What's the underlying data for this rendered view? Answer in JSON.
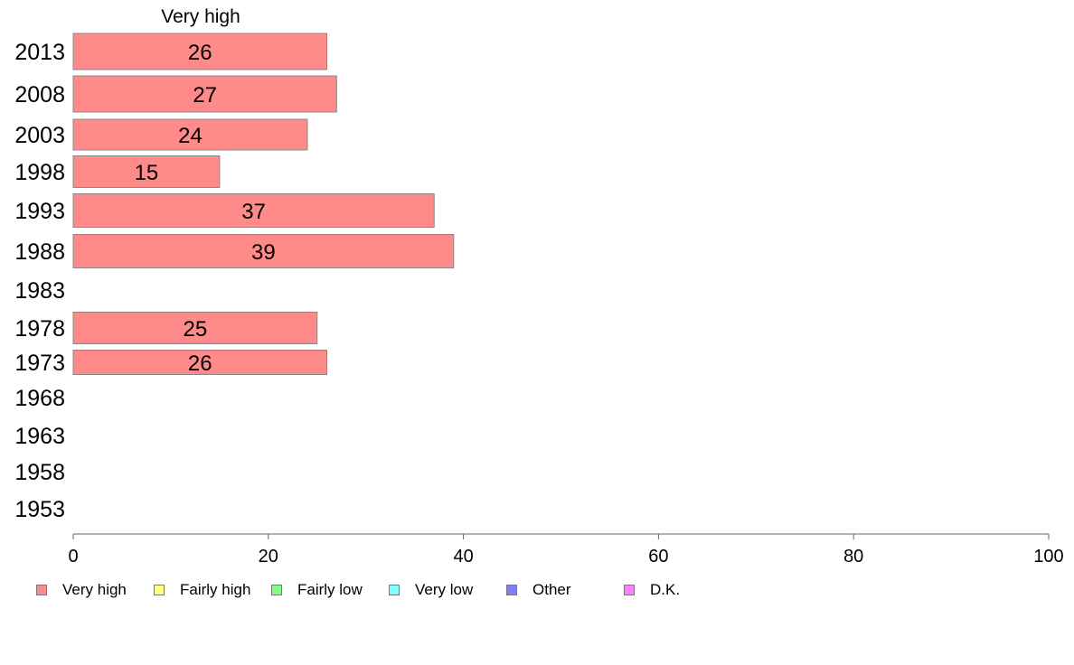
{
  "chart_data": {
    "type": "bar",
    "orientation": "horizontal",
    "column_title": "Very high",
    "categories": [
      "2013",
      "2008",
      "2003",
      "1998",
      "1993",
      "1988",
      "1983",
      "1978",
      "1973",
      "1968",
      "1963",
      "1958",
      "1953"
    ],
    "series": [
      {
        "name": "Very high",
        "color": "#ff8a8a",
        "values": [
          26,
          27,
          24,
          15,
          37,
          39,
          null,
          25,
          26,
          null,
          null,
          null,
          null
        ]
      }
    ],
    "xlim": [
      0,
      100
    ],
    "xticks": [
      "0",
      "20",
      "40",
      "60",
      "80",
      "100"
    ],
    "bar_stroke_color": "#888888",
    "legend_position": "bottom",
    "legend": [
      {
        "label": "Very high",
        "color": "#ff8a8a"
      },
      {
        "label": "Fairly high",
        "color": "#ffff80"
      },
      {
        "label": "Fairly low",
        "color": "#80ff80"
      },
      {
        "label": "Very low",
        "color": "#80ffff"
      },
      {
        "label": "Other",
        "color": "#8080ff"
      },
      {
        "label": "D.K.",
        "color": "#ff80ff"
      }
    ]
  }
}
